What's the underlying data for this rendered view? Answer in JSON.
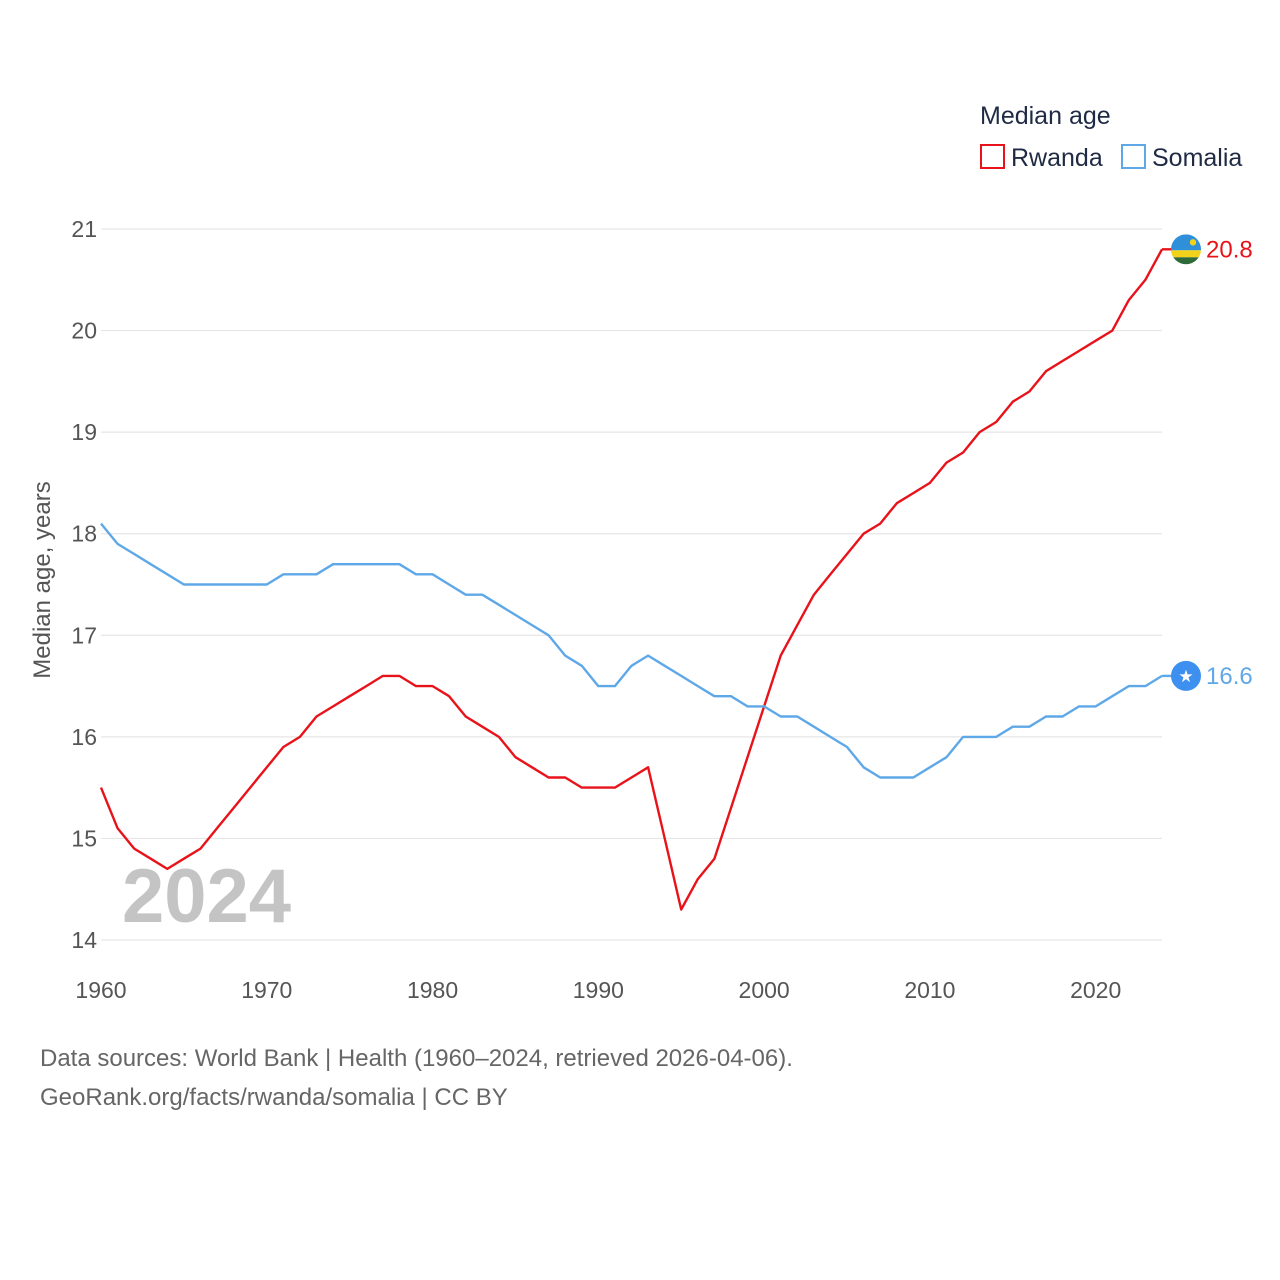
{
  "chart_data": {
    "type": "line",
    "title": "Median age",
    "ylabel": "Median age, years",
    "xlabel": "",
    "watermark_year": "2024",
    "xlim": [
      1960,
      2024
    ],
    "ylim": [
      14,
      21
    ],
    "x_ticks": [
      "1960",
      "1970",
      "1980",
      "1990",
      "2000",
      "2010",
      "2020"
    ],
    "y_ticks": [
      "14",
      "15",
      "16",
      "17",
      "18",
      "19",
      "20",
      "21"
    ],
    "x": [
      1960,
      1961,
      1962,
      1963,
      1964,
      1965,
      1966,
      1967,
      1968,
      1969,
      1970,
      1971,
      1972,
      1973,
      1974,
      1975,
      1976,
      1977,
      1978,
      1979,
      1980,
      1981,
      1982,
      1983,
      1984,
      1985,
      1986,
      1987,
      1988,
      1989,
      1990,
      1991,
      1992,
      1993,
      1994,
      1995,
      1996,
      1997,
      1998,
      1999,
      2000,
      2001,
      2002,
      2003,
      2004,
      2005,
      2006,
      2007,
      2008,
      2009,
      2010,
      2011,
      2012,
      2013,
      2014,
      2015,
      2016,
      2017,
      2018,
      2019,
      2020,
      2021,
      2022,
      2023,
      2024
    ],
    "series": [
      {
        "name": "Rwanda",
        "color": "#e8131a",
        "end_label": "20.8",
        "marker_icon": "rwanda-flag-icon",
        "values": [
          15.5,
          15.1,
          14.9,
          14.8,
          14.7,
          14.8,
          14.9,
          15.1,
          15.3,
          15.5,
          15.7,
          15.9,
          16.0,
          16.2,
          16.3,
          16.4,
          16.5,
          16.6,
          16.6,
          16.5,
          16.5,
          16.4,
          16.2,
          16.1,
          16.0,
          15.8,
          15.7,
          15.6,
          15.6,
          15.5,
          15.5,
          15.5,
          15.6,
          15.7,
          15.0,
          14.3,
          14.6,
          14.8,
          15.3,
          15.8,
          16.3,
          16.8,
          17.1,
          17.4,
          17.6,
          17.8,
          18.0,
          18.1,
          18.3,
          18.4,
          18.5,
          18.7,
          18.8,
          19.0,
          19.1,
          19.3,
          19.4,
          19.6,
          19.7,
          19.8,
          19.9,
          20.0,
          20.3,
          20.5,
          20.8
        ]
      },
      {
        "name": "Somalia",
        "color": "#5fa8e8",
        "end_label": "16.6",
        "marker_icon": "somalia-flag-icon",
        "values": [
          18.1,
          17.9,
          17.8,
          17.7,
          17.6,
          17.5,
          17.5,
          17.5,
          17.5,
          17.5,
          17.5,
          17.6,
          17.6,
          17.6,
          17.7,
          17.7,
          17.7,
          17.7,
          17.7,
          17.6,
          17.6,
          17.5,
          17.4,
          17.4,
          17.3,
          17.2,
          17.1,
          17.0,
          16.8,
          16.7,
          16.5,
          16.5,
          16.7,
          16.8,
          16.7,
          16.6,
          16.5,
          16.4,
          16.4,
          16.3,
          16.3,
          16.2,
          16.2,
          16.1,
          16.0,
          15.9,
          15.7,
          15.6,
          15.6,
          15.6,
          15.7,
          15.8,
          16.0,
          16.0,
          16.0,
          16.1,
          16.1,
          16.2,
          16.2,
          16.3,
          16.3,
          16.4,
          16.5,
          16.5,
          16.6
        ]
      }
    ]
  },
  "footer": {
    "line1": "Data sources: World Bank | Health (1960–2024, retrieved 2026-04-06).",
    "line2": "GeoRank.org/facts/rwanda/somalia | CC BY"
  }
}
